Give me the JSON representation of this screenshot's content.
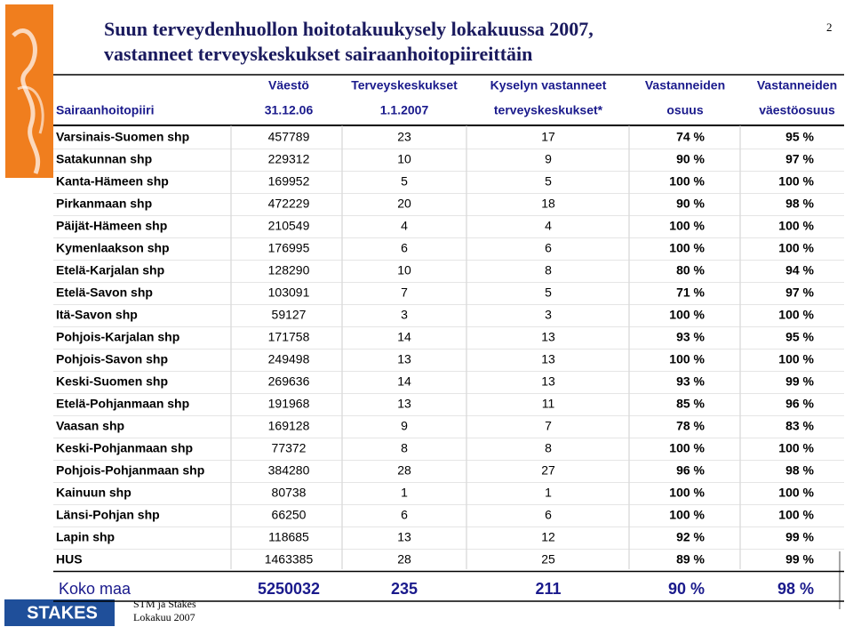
{
  "header": {
    "title": [
      "Suun terveydenhuollon hoitotakuukysely lokakuussa 2007,",
      "vastanneet terveyskeskukset sairaanhoitopiireittäin"
    ],
    "page_number": "2"
  },
  "table": {
    "header_top": [
      "Väestö",
      "Terveyskeskukset",
      "Kyselyn vastanneet",
      "Vastanneiden",
      "Vastanneiden"
    ],
    "header_bottom": [
      "Sairaanhoitopiiri",
      "31.12.06",
      "1.1.2007",
      "terveyskeskukset*",
      "osuus",
      "väestöosuus"
    ],
    "rows": [
      [
        "Varsinais-Suomen shp",
        "457789",
        "23",
        "17",
        "74 %",
        "95 %"
      ],
      [
        "Satakunnan shp",
        "229312",
        "10",
        "9",
        "90 %",
        "97 %"
      ],
      [
        "Kanta-Hämeen shp",
        "169952",
        "5",
        "5",
        "100 %",
        "100 %"
      ],
      [
        "Pirkanmaan shp",
        "472229",
        "20",
        "18",
        "90 %",
        "98 %"
      ],
      [
        "Päijät-Hämeen shp",
        "210549",
        "4",
        "4",
        "100 %",
        "100 %"
      ],
      [
        "Kymenlaakson shp",
        "176995",
        "6",
        "6",
        "100 %",
        "100 %"
      ],
      [
        "Etelä-Karjalan shp",
        "128290",
        "10",
        "8",
        "80 %",
        "94 %"
      ],
      [
        "Etelä-Savon shp",
        "103091",
        "7",
        "5",
        "71 %",
        "97 %"
      ],
      [
        "Itä-Savon shp",
        "59127",
        "3",
        "3",
        "100 %",
        "100 %"
      ],
      [
        "Pohjois-Karjalan shp",
        "171758",
        "14",
        "13",
        "93 %",
        "95 %"
      ],
      [
        "Pohjois-Savon shp",
        "249498",
        "13",
        "13",
        "100 %",
        "100 %"
      ],
      [
        "Keski-Suomen shp",
        "269636",
        "14",
        "13",
        "93 %",
        "99 %"
      ],
      [
        "Etelä-Pohjanmaan shp",
        "191968",
        "13",
        "11",
        "85 %",
        "96 %"
      ],
      [
        "Vaasan shp",
        "169128",
        "9",
        "7",
        "78 %",
        "83 %"
      ],
      [
        "Keski-Pohjanmaan shp",
        "77372",
        "8",
        "8",
        "100 %",
        "100 %"
      ],
      [
        "Pohjois-Pohjanmaan shp",
        "384280",
        "28",
        "27",
        "96 %",
        "98 %"
      ],
      [
        "Kainuun shp",
        "80738",
        "1",
        "1",
        "100 %",
        "100 %"
      ],
      [
        "Länsi-Pohjan shp",
        "66250",
        "6",
        "6",
        "100 %",
        "100 %"
      ],
      [
        "Lapin shp",
        "118685",
        "13",
        "12",
        "92 %",
        "99 %"
      ],
      [
        "HUS",
        "1463385",
        "28",
        "25",
        "89 %",
        "99 %"
      ]
    ],
    "total": [
      "Koko maa",
      "5250032",
      "235",
      "211",
      "90 %",
      "98 %"
    ]
  },
  "footer": {
    "logo": "STAKES",
    "line1": "STM ja Stakes",
    "line2": "Lokakuu 2007"
  }
}
